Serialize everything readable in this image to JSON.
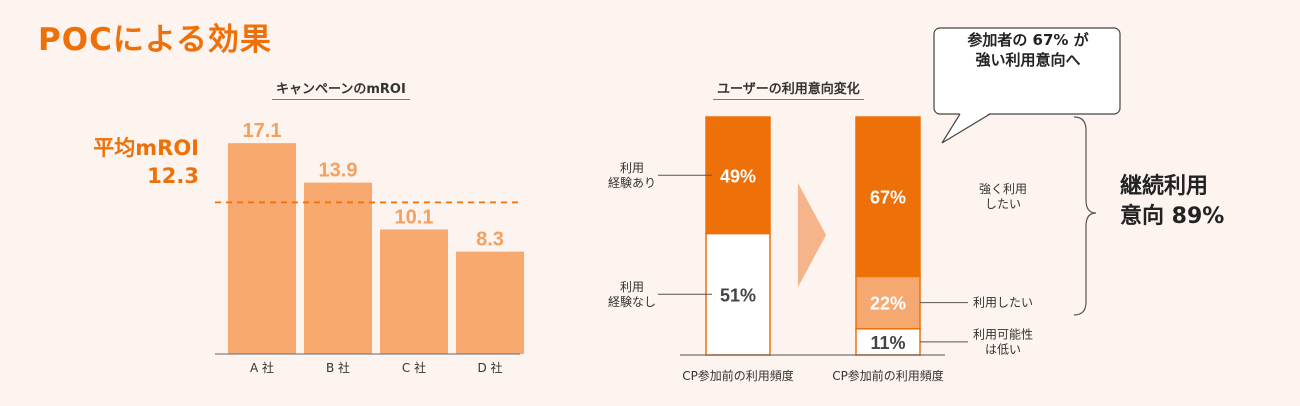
{
  "title": "POCによる効果",
  "left_heading": "キャンペーンのmROI",
  "right_heading": "ユーザーの利用意向変化",
  "avg_label": "平均mROI",
  "avg_value": "12.3",
  "callout": {
    "line1": "参加者の 67% が",
    "line2": "強い利用意向へ"
  },
  "total": {
    "line1": "継続利用",
    "line2": "意向 89%"
  },
  "colors": {
    "accent": "#ee7008",
    "bar": "#f7a96f",
    "light": "#f5a05e",
    "mid": "#f6a871",
    "bg": "#fdf4ef"
  },
  "chart_data": [
    {
      "type": "bar",
      "title": "キャンペーンのmROI",
      "categories": [
        "A 社",
        "B 社",
        "C 社",
        "D 社"
      ],
      "values": [
        17.1,
        13.9,
        10.1,
        8.3
      ],
      "value_labels": [
        "17.1",
        "13.9",
        "10.1",
        "8.3"
      ],
      "reference_line": {
        "label": "平均mROI",
        "value": 12.3
      },
      "ylim": [
        0,
        20
      ]
    },
    {
      "type": "bar",
      "stacked": true,
      "title": "ユーザーの利用意向変化",
      "categories": [
        "CP参加前の利用頻度",
        "CP参加前の利用頻度"
      ],
      "series": [
        {
          "name": "before",
          "segments": [
            {
              "label": "利用\n経験あり",
              "value": 49,
              "text": "49%"
            },
            {
              "label": "利用\n経験なし",
              "value": 51,
              "text": "51%"
            }
          ]
        },
        {
          "name": "after",
          "segments": [
            {
              "label": "強く利用\nしたい",
              "value": 67,
              "text": "67%"
            },
            {
              "label": "利用したい",
              "value": 22,
              "text": "22%"
            },
            {
              "label": "利用可能性\nは低い",
              "value": 11,
              "text": "11%"
            }
          ]
        }
      ],
      "ylim": [
        0,
        100
      ]
    }
  ]
}
